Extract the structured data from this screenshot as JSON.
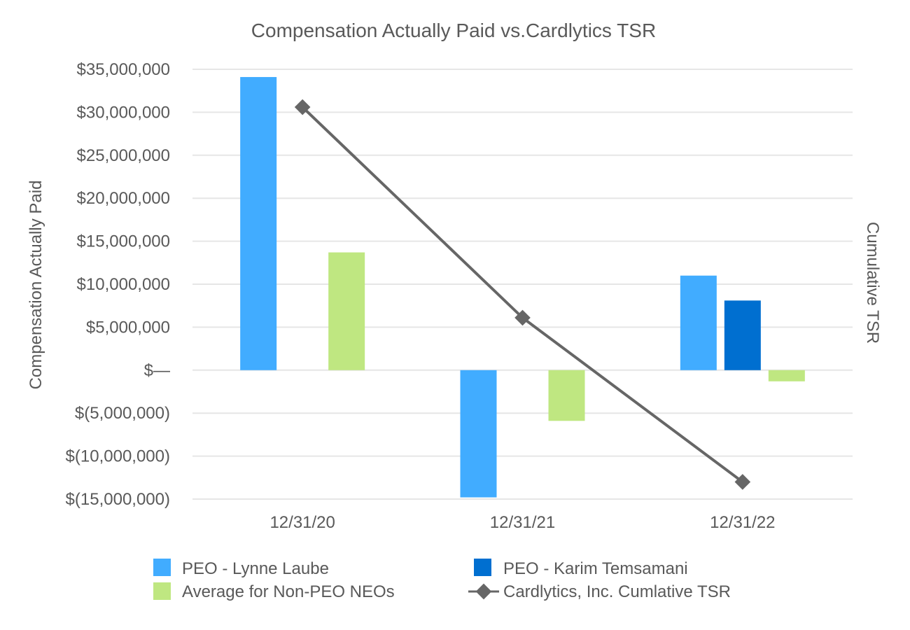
{
  "chart_data": {
    "type": "bar",
    "title": "Compensation Actually Paid vs.Cardlytics TSR",
    "ylabel": "Compensation Actually Paid",
    "y2label": "Cumulative TSR",
    "categories": [
      "12/31/20",
      "12/31/21",
      "12/31/22"
    ],
    "ylim": [
      -15000000,
      35000000
    ],
    "yticks": [
      35000000,
      30000000,
      25000000,
      20000000,
      15000000,
      10000000,
      5000000,
      0,
      -5000000,
      -10000000,
      -15000000
    ],
    "ytick_labels": [
      "$35,000,000",
      "$30,000,000",
      "$25,000,000",
      "$20,000,000",
      "$15,000,000",
      "$10,000,000",
      "$5,000,000",
      "$—",
      "$(5,000,000)",
      "$(10,000,000)",
      "$(15,000,000)"
    ],
    "series": [
      {
        "name": "PEO - Lynne Laube",
        "color": "#41acff",
        "values": [
          34100000,
          -14800000,
          11000000
        ]
      },
      {
        "name": "PEO - Karim Temsamani",
        "color": "#006fd0",
        "values": [
          0,
          0,
          8100000
        ]
      },
      {
        "name": "Average for Non-PEO NEOs",
        "color": "#bfe781",
        "values": [
          13700000,
          -5900000,
          -1300000
        ]
      }
    ],
    "line_series": {
      "name": "Cardlytics, Inc.  Cumlative TSR",
      "color": "#666666",
      "values_on_primary_scale": [
        30600000,
        6100000,
        -13000000
      ]
    },
    "legend": {
      "position": "bottom",
      "items": [
        "PEO - Lynne Laube",
        "PEO - Karim Temsamani",
        "Average for Non-PEO NEOs",
        "Cardlytics, Inc.  Cumlative TSR"
      ]
    },
    "grid": true
  }
}
